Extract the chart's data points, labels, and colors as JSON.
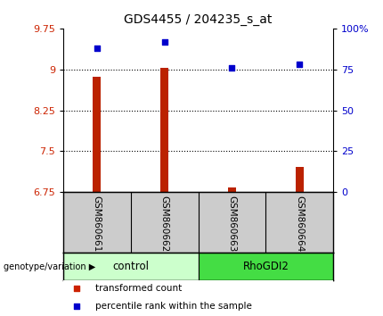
{
  "title": "GDS4455 / 204235_s_at",
  "samples": [
    "GSM860661",
    "GSM860662",
    "GSM860663",
    "GSM860664"
  ],
  "bar_values": [
    8.87,
    9.02,
    6.83,
    7.22
  ],
  "dot_values": [
    88,
    92,
    76,
    78
  ],
  "ylim_left": [
    6.75,
    9.75
  ],
  "ylim_right": [
    0,
    100
  ],
  "yticks_left": [
    6.75,
    7.5,
    8.25,
    9.0,
    9.75
  ],
  "ytick_labels_left": [
    "6.75",
    "7.5",
    "8.25",
    "9",
    "9.75"
  ],
  "yticks_right": [
    0,
    25,
    50,
    75,
    100
  ],
  "ytick_labels_right": [
    "0",
    "25",
    "50",
    "75",
    "100%"
  ],
  "hlines": [
    9.0,
    8.25,
    7.5
  ],
  "bar_color": "#bb2200",
  "dot_color": "#0000cc",
  "bar_bottom": 6.75,
  "groups": [
    {
      "label": "control",
      "samples": [
        0,
        1
      ],
      "color": "#ccffcc"
    },
    {
      "label": "RhoGDI2",
      "samples": [
        2,
        3
      ],
      "color": "#44dd44"
    }
  ],
  "group_label_prefix": "genotype/variation",
  "legend_items": [
    {
      "label": "transformed count",
      "color": "#cc2200",
      "marker": "s"
    },
    {
      "label": "percentile rank within the sample",
      "color": "#0000cc",
      "marker": "s"
    }
  ],
  "plot_bg": "#ffffff",
  "sample_bg": "#cccccc",
  "bar_width": 0.12
}
